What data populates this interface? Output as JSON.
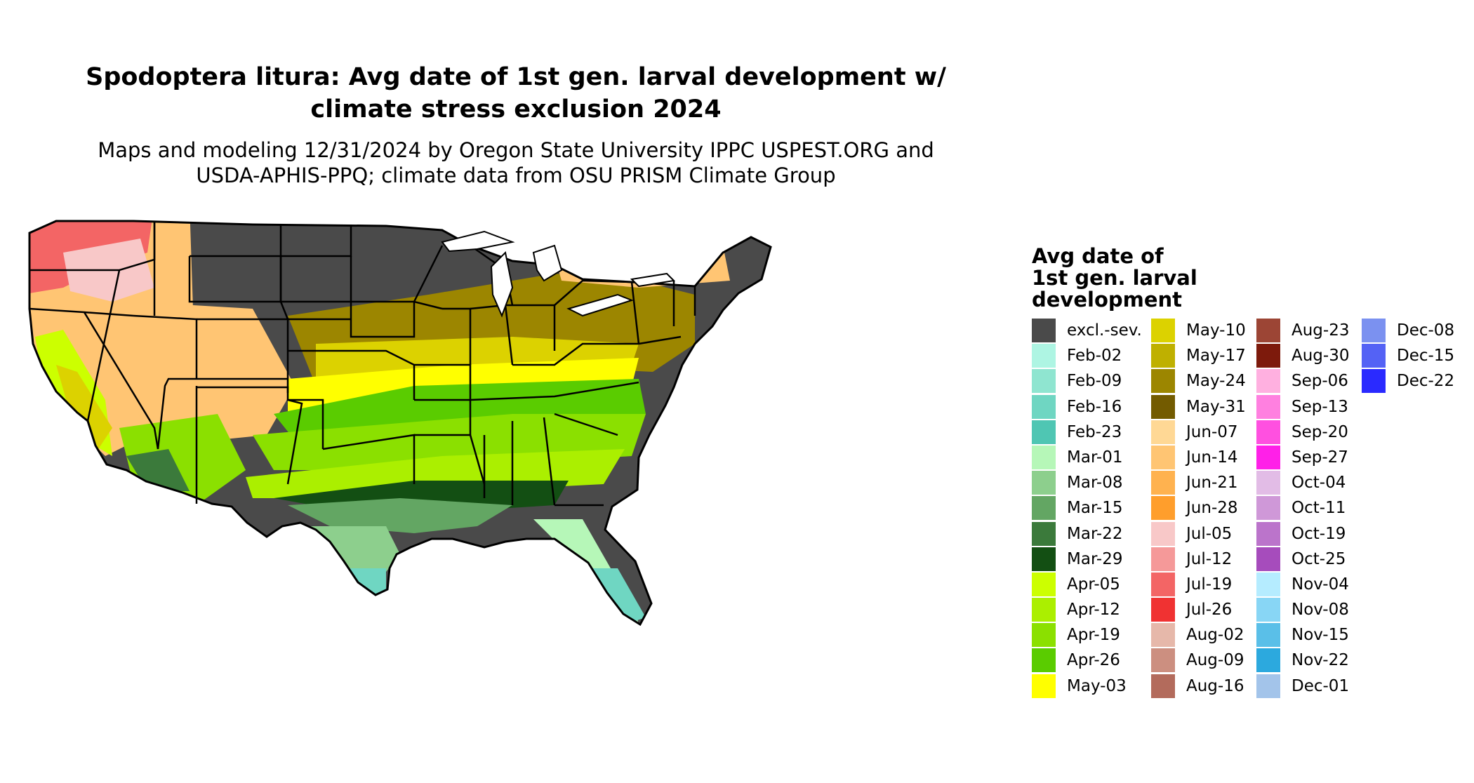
{
  "title": {
    "line1": "Spodoptera litura: Avg date of 1st gen. larval development w/",
    "line2": "climate stress exclusion 2024"
  },
  "subtitle": {
    "line1": "Maps and modeling 12/31/2024 by Oregon State University IPPC USPEST.ORG and",
    "line2": "USDA-APHIS-PPQ; climate data from OSU PRISM Climate Group"
  },
  "legend": {
    "title_lines": [
      "Avg date of",
      "1st gen. larval",
      "development"
    ],
    "columns": [
      [
        {
          "label": "excl.-sev.",
          "color": "#4a4a4a"
        },
        {
          "label": "Feb-02",
          "color": "#aef5e3"
        },
        {
          "label": "Feb-09",
          "color": "#8fe5d0"
        },
        {
          "label": "Feb-16",
          "color": "#6fd6c2"
        },
        {
          "label": "Feb-23",
          "color": "#4fc6b3"
        },
        {
          "label": "Mar-01",
          "color": "#b6f7b8"
        },
        {
          "label": "Mar-08",
          "color": "#8dcf8d"
        },
        {
          "label": "Mar-15",
          "color": "#63a663"
        },
        {
          "label": "Mar-22",
          "color": "#3b7a3b"
        },
        {
          "label": "Mar-29",
          "color": "#134f13"
        },
        {
          "label": "Apr-05",
          "color": "#ccff00"
        },
        {
          "label": "Apr-12",
          "color": "#abef00"
        },
        {
          "label": "Apr-19",
          "color": "#8be000"
        },
        {
          "label": "Apr-26",
          "color": "#5acc00"
        },
        {
          "label": "May-03",
          "color": "#ffff00"
        }
      ],
      [
        {
          "label": "May-10",
          "color": "#dcd200"
        },
        {
          "label": "May-17",
          "color": "#bfb000"
        },
        {
          "label": "May-24",
          "color": "#9c8600"
        },
        {
          "label": "May-31",
          "color": "#735b00"
        },
        {
          "label": "Jun-07",
          "color": "#ffd895"
        },
        {
          "label": "Jun-14",
          "color": "#ffc573"
        },
        {
          "label": "Jun-21",
          "color": "#ffb24f"
        },
        {
          "label": "Jun-28",
          "color": "#ff9e2c"
        },
        {
          "label": "Jul-05",
          "color": "#f8c8c8"
        },
        {
          "label": "Jul-12",
          "color": "#f59999"
        },
        {
          "label": "Jul-19",
          "color": "#f36565"
        },
        {
          "label": "Jul-26",
          "color": "#f03232"
        },
        {
          "label": "Aug-02",
          "color": "#e6b8aa"
        },
        {
          "label": "Aug-09",
          "color": "#cc8f80"
        },
        {
          "label": "Aug-16",
          "color": "#b36b5c"
        }
      ],
      [
        {
          "label": "Aug-23",
          "color": "#9c4535"
        },
        {
          "label": "Aug-30",
          "color": "#7d1a0c"
        },
        {
          "label": "Sep-06",
          "color": "#ffb0e0"
        },
        {
          "label": "Sep-13",
          "color": "#ff80e0"
        },
        {
          "label": "Sep-20",
          "color": "#ff50e0"
        },
        {
          "label": "Sep-27",
          "color": "#ff20e8"
        },
        {
          "label": "Oct-04",
          "color": "#e2bce6"
        },
        {
          "label": "Oct-11",
          "color": "#cf98d8"
        },
        {
          "label": "Oct-19",
          "color": "#bb74cb"
        },
        {
          "label": "Oct-25",
          "color": "#a64cbc"
        },
        {
          "label": "Nov-04",
          "color": "#b5ecff"
        },
        {
          "label": "Nov-08",
          "color": "#88d6f5"
        },
        {
          "label": "Nov-15",
          "color": "#5abfe8"
        },
        {
          "label": "Nov-22",
          "color": "#2ca9de"
        },
        {
          "label": "Dec-01",
          "color": "#a3c4ea"
        }
      ],
      [
        {
          "label": "Dec-08",
          "color": "#7b91f0"
        },
        {
          "label": "Dec-15",
          "color": "#5462f5"
        },
        {
          "label": "Dec-22",
          "color": "#2a2aff"
        }
      ]
    ]
  },
  "map": {
    "excluded_color": "#4a4a4a",
    "state_border_color": "#000000"
  }
}
